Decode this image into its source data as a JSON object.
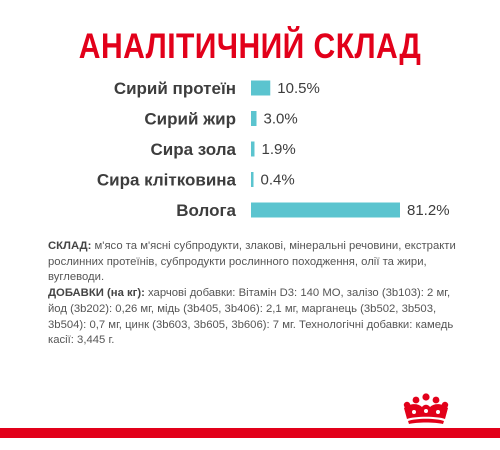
{
  "title": "АНАЛІТИЧНИЙ СКЛАД",
  "chart_data": {
    "type": "bar",
    "orientation": "horizontal",
    "categories": [
      "Сирий протеїн",
      "Сирий жир",
      "Сира зола",
      "Сира клітковина",
      "Волога"
    ],
    "values": [
      10.5,
      3.0,
      1.9,
      0.4,
      81.2
    ],
    "value_labels": [
      "10.5%",
      "3.0%",
      "1.9%",
      "0.4%",
      "81.2%"
    ],
    "unit": "%",
    "bar_color": "#5bc4cf",
    "xlim": [
      0,
      100
    ]
  },
  "composition": {
    "sklad_label": "СКЛАД:",
    "sklad_text": "м'ясо та м'ясні субпродукти, злакові, мінеральні речовини, екстракти рослинних протеїнів, субпродукти рослинного походження, олії та жири, вуглеводи.",
    "dobavky_label": "ДОБАВКИ (на кг):",
    "dobavky_text": "харчові добавки: Вітамін D3: 140 МО, залізо (3b103): 2 мг, йод (3b202): 0,26 мг, мідь (3b405, 3b406): 2,1 мг, марганець (3b502, 3b503, 3b504): 0,7 мг, цинк (3b603, 3b605, 3b606): 7 мг. Технологічні добавки: камедь касії: 3,445 г."
  },
  "colors": {
    "title": "#e2001a",
    "brand_red": "#e2001a",
    "bar": "#5bc4cf",
    "text": "#3d3d3d"
  },
  "logo": {
    "name": "royal-canin-crown-icon"
  }
}
